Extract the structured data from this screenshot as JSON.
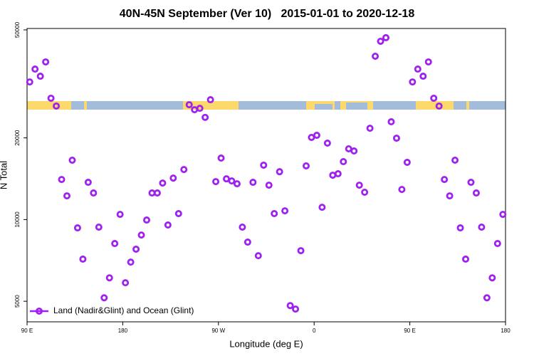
{
  "chart_data": {
    "type": "scatter",
    "title": "40N-45N September (Ver 10)   2015-01-01 to 2020-12-18",
    "xlabel": "Longitude (deg E)",
    "ylabel": "N Total",
    "log_y": true,
    "legend": "lower left",
    "xlim": [
      90,
      540
    ],
    "ylim": [
      4200,
      50600
    ],
    "xticks": [
      {
        "value": 90,
        "label": "90 E"
      },
      180,
      {
        "value": 270,
        "label": "90 W"
      },
      {
        "value": 360,
        "label": "0"
      },
      {
        "value": 450,
        "label": "90 E"
      },
      {
        "value": 540,
        "label": "180"
      }
    ],
    "yticks": [
      5000,
      10000,
      20000,
      50000
    ],
    "series": [
      {
        "name": "Land (Nadir&Glint) and Ocean (Glint)",
        "color": "#a020f0",
        "x": [
          92.5,
          97.5,
          102.5,
          107.5,
          112.5,
          117.5,
          122.5,
          127.5,
          132.5,
          137.5,
          142.5,
          147.5,
          152.5,
          157.5,
          162.5,
          167.5,
          172.5,
          177.5,
          182.5,
          187.5,
          192.5,
          197.5,
          202.5,
          207.5,
          212.5,
          217.5,
          222.5,
          227.5,
          232.5,
          237.5,
          242.5,
          247.5,
          252.5,
          257.5,
          262.5,
          267.5,
          272.5,
          277.5,
          282.5,
          287.5,
          292.5,
          297.5,
          302.5,
          307.5,
          312.5,
          317.5,
          322.5,
          327.5,
          332.5,
          337.5,
          342.5,
          347.5,
          352.5,
          357.5,
          362.5,
          367.5,
          372.5,
          377.5,
          382.5,
          387.5,
          392.5,
          397.5,
          402.5,
          407.5,
          412.5,
          417.5,
          422.5,
          427.5,
          432.5,
          437.5,
          442.5,
          447.5,
          452.5,
          457.5,
          462.5,
          467.5,
          472.5,
          477.5,
          482.5,
          487.5,
          492.5,
          497.5,
          502.5,
          507.5,
          512.5,
          517.5,
          522.5,
          527.5,
          532.5,
          537.5
        ],
        "values": [
          32150,
          35850,
          33750,
          38100,
          28000,
          26200,
          14050,
          12230,
          16550,
          9320,
          7150,
          13720,
          12530,
          9380,
          5150,
          6100,
          8160,
          10450,
          5850,
          6970,
          7780,
          8770,
          9960,
          12530,
          12530,
          13630,
          9550,
          14220,
          10520,
          15290,
          26500,
          25400,
          25700,
          23800,
          27650,
          13800,
          16850,
          14130,
          13880,
          13550,
          9380,
          8260,
          13720,
          7360,
          15870,
          13390,
          10520,
          15010,
          10770,
          4820,
          4680,
          7680,
          15770,
          20080,
          20440,
          11100,
          19130,
          14570,
          14750,
          16350,
          18230,
          17900,
          13390,
          12610,
          21700,
          39980,
          45400,
          46800,
          22930,
          19950,
          12910,
          16250,
          32150,
          35850,
          33750,
          38100,
          28000,
          26200,
          14050,
          12230,
          16550,
          9320,
          7150,
          13720,
          12530,
          9380,
          5150,
          6100,
          8160,
          10450
        ]
      }
    ]
  }
}
